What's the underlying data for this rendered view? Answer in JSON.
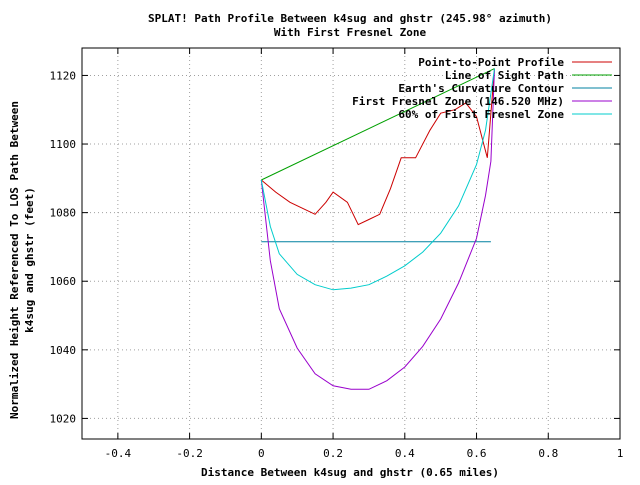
{
  "chart_data": {
    "type": "line",
    "title": "SPLAT! Path Profile Between k4sug and ghstr (245.98° azimuth)",
    "subtitle": "With First Fresnel Zone",
    "xlabel": "Distance Between k4sug and ghstr (0.65 miles)",
    "ylabel_line1": "Normalized Height Referenced To LOS Path Between",
    "ylabel_line2": "k4sug and ghstr (feet)",
    "xlim": [
      -0.5,
      1
    ],
    "ylim": [
      1014,
      1128
    ],
    "xticks": [
      {
        "value": -0.4,
        "label": "-0.4"
      },
      {
        "value": -0.2,
        "label": "-0.2"
      },
      {
        "value": 0,
        "label": "0"
      },
      {
        "value": 0.2,
        "label": "0.2"
      },
      {
        "value": 0.4,
        "label": "0.4"
      },
      {
        "value": 0.6,
        "label": "0.6"
      },
      {
        "value": 0.8,
        "label": "0.8"
      },
      {
        "value": 1,
        "label": "1"
      }
    ],
    "yticks": [
      {
        "value": 1020,
        "label": "1020"
      },
      {
        "value": 1040,
        "label": "1040"
      },
      {
        "value": 1060,
        "label": "1060"
      },
      {
        "value": 1080,
        "label": "1080"
      },
      {
        "value": 1100,
        "label": "1100"
      },
      {
        "value": 1120,
        "label": "1120"
      }
    ],
    "grid": true,
    "legend_position": "top-right",
    "series": [
      {
        "name": "Point-to-Point Profile",
        "color": "#cc0000",
        "x": [
          0,
          0.04,
          0.08,
          0.12,
          0.15,
          0.18,
          0.2,
          0.24,
          0.27,
          0.3,
          0.33,
          0.36,
          0.39,
          0.43,
          0.47,
          0.5,
          0.54,
          0.57,
          0.6,
          0.63,
          0.65
        ],
        "y": [
          1089.5,
          1086,
          1083,
          1081,
          1079.5,
          1083,
          1086,
          1083,
          1076.5,
          1078,
          1079.5,
          1087,
          1096,
          1096,
          1104,
          1109,
          1110,
          1112,
          1108,
          1096,
          1122
        ]
      },
      {
        "name": "Line of Sight Path",
        "color": "#00a000",
        "x": [
          0,
          0.65
        ],
        "y": [
          1089.5,
          1122
        ]
      },
      {
        "name": "Earth's Curvature Contour",
        "color": "#0080a0",
        "x": [
          0,
          0.64
        ],
        "y": [
          1071.5,
          1071.5
        ]
      },
      {
        "name": "First Fresnel Zone (146.520 MHz)",
        "color": "#9900cc",
        "x": [
          0,
          0.025,
          0.05,
          0.1,
          0.15,
          0.2,
          0.25,
          0.3,
          0.35,
          0.4,
          0.45,
          0.5,
          0.55,
          0.6,
          0.625,
          0.64,
          0.65
        ],
        "y": [
          1089.5,
          1066,
          1052,
          1040.5,
          1033,
          1029.5,
          1028.5,
          1028.5,
          1031,
          1035,
          1041,
          1049,
          1059.5,
          1072.5,
          1085,
          1095,
          1122
        ]
      },
      {
        "name": "60% of First Fresnel Zone",
        "color": "#00cccc",
        "x": [
          0,
          0.025,
          0.05,
          0.1,
          0.15,
          0.2,
          0.25,
          0.3,
          0.35,
          0.4,
          0.45,
          0.5,
          0.55,
          0.6,
          0.625,
          0.65
        ],
        "y": [
          1089.5,
          1076,
          1068,
          1062,
          1059,
          1057.5,
          1058,
          1059,
          1061.5,
          1064.5,
          1068.5,
          1074,
          1082,
          1094,
          1104,
          1122
        ]
      }
    ]
  }
}
